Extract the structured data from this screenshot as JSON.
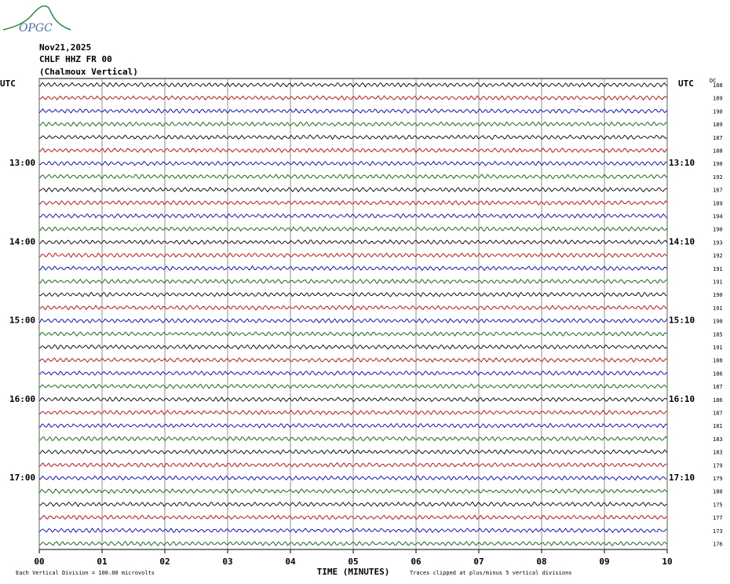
{
  "logo": "OPGC",
  "chart_data": {
    "type": "helicorder",
    "header": [
      "Nov21,2025",
      "CHLF HHZ FR 00",
      "(Chalmoux Vertical)"
    ],
    "left_label": "UTC",
    "right_label": "UTC",
    "offset_label": "DC",
    "xlabel": "TIME (MINUTES)",
    "scale_note": "Each Vertical Division =  100.00 microvolts",
    "clip_note": "Traces clipped at plus/minus 5 vertical divisions",
    "xlim": [
      0,
      10
    ],
    "xticks": [
      {
        "value": 0,
        "label": "00"
      },
      {
        "value": 1,
        "label": "01"
      },
      {
        "value": 2,
        "label": "02"
      },
      {
        "value": 3,
        "label": "03"
      },
      {
        "value": 4,
        "label": "04"
      },
      {
        "value": 5,
        "label": "05"
      },
      {
        "value": 6,
        "label": "06"
      },
      {
        "value": 7,
        "label": "07"
      },
      {
        "value": 8,
        "label": "08"
      },
      {
        "value": 9,
        "label": "09"
      },
      10
    ],
    "grid": true,
    "trace_colors": [
      "#000000",
      "#cc0000",
      "#0000cc",
      "#006600"
    ],
    "row_labels_left": [
      null,
      null,
      null,
      null,
      null,
      null,
      "13:00",
      null,
      null,
      null,
      null,
      null,
      "14:00",
      null,
      null,
      null,
      null,
      null,
      "15:00",
      null,
      null,
      null,
      null,
      null,
      "16:00",
      null,
      null,
      null,
      null,
      null,
      "17:00",
      null,
      null,
      null,
      null,
      null
    ],
    "row_labels_right": [
      null,
      null,
      null,
      null,
      null,
      null,
      "13:10",
      null,
      null,
      null,
      null,
      null,
      "14:10",
      null,
      null,
      null,
      null,
      null,
      "15:10",
      null,
      null,
      null,
      null,
      null,
      "16:10",
      null,
      null,
      null,
      null,
      null,
      "17:10",
      null,
      null,
      null,
      null,
      null
    ],
    "offsets": [
      188,
      189,
      190,
      189,
      187,
      188,
      190,
      192,
      167,
      189,
      194,
      190,
      193,
      192,
      191,
      191,
      190,
      191,
      190,
      185,
      191,
      188,
      186,
      187,
      186,
      187,
      181,
      183,
      183,
      179,
      179,
      180,
      175,
      177,
      173,
      176
    ]
  }
}
